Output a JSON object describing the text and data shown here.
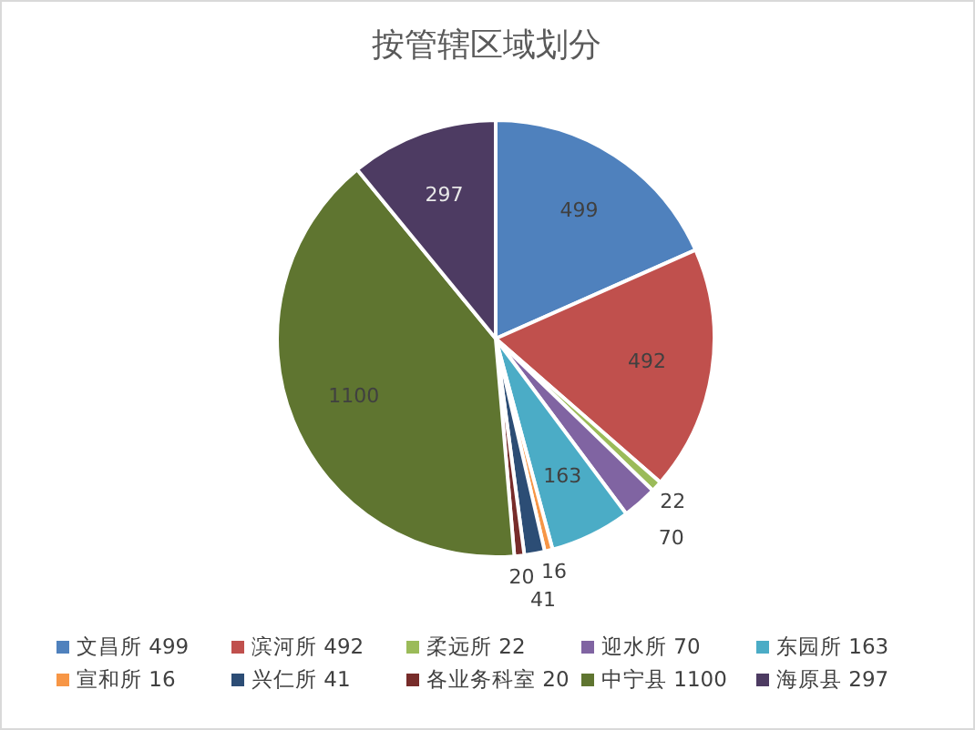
{
  "chart_data": {
    "type": "pie",
    "title": "按管辖区域划分",
    "categories": [
      "文昌所 499",
      "滨河所 492",
      "柔远所 22",
      "迎水所 70",
      "东园所 163",
      "宣和所 16",
      "兴仁所 41",
      "各业务科室 20",
      "中宁县 1100",
      "海原县 297"
    ],
    "values": [
      499,
      492,
      22,
      70,
      163,
      16,
      41,
      20,
      1100,
      297
    ],
    "colors": [
      "#4f81bd",
      "#c0504d",
      "#9bbb59",
      "#8064a2",
      "#4bacc6",
      "#f79646",
      "#2c4d75",
      "#772c2a",
      "#5f7530",
      "#4d3b62"
    ],
    "data_labels": true,
    "legend": "bottom"
  }
}
